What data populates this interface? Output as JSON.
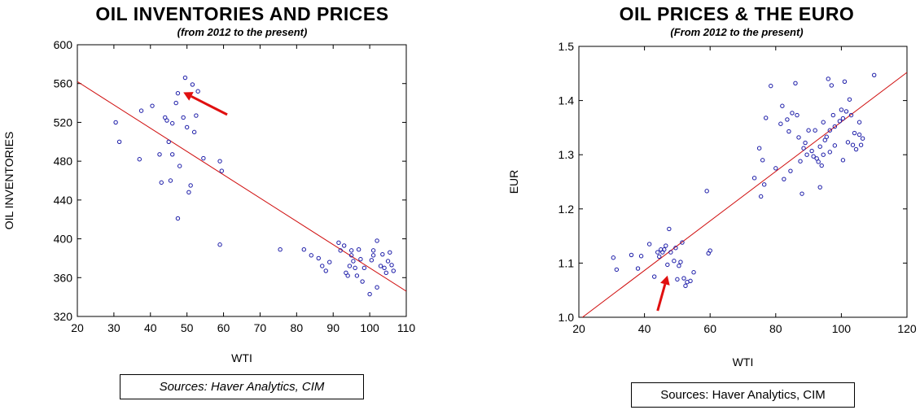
{
  "charts": [
    {
      "title": "OIL INVENTORIES AND PRICES",
      "subtitle": "(from 2012 to the present)",
      "source": "Sources:  Haver Analytics, CIM"
    },
    {
      "title": "OIL PRICES & THE EURO",
      "subtitle": "(From 2012 to the present)",
      "source": "Sources:  Haver Analytics, CIM"
    }
  ],
  "chart_data": [
    {
      "type": "scatter",
      "title": "OIL INVENTORIES AND PRICES",
      "subtitle": "(from 2012 to the present)",
      "xlabel": "WTI",
      "ylabel": "OIL INVENTORIES",
      "xlim": [
        20,
        110
      ],
      "ylim": [
        320,
        600
      ],
      "xticks": [
        "20",
        "30",
        "40",
        "50",
        "60",
        "70",
        "80",
        "90",
        "100",
        "110"
      ],
      "yticks": [
        "320",
        "360",
        "400",
        "440",
        "480",
        "520",
        "560",
        "600"
      ],
      "point_color": "#1c1ca8",
      "line_color": "#d01010",
      "fit_line": [
        [
          20,
          562
        ],
        [
          110,
          346
        ]
      ],
      "arrow": {
        "from": [
          61,
          528
        ],
        "to": [
          49,
          551
        ],
        "color": "#e01010"
      },
      "points": [
        [
          30.5,
          520
        ],
        [
          31.5,
          500
        ],
        [
          37,
          482
        ],
        [
          37.5,
          532
        ],
        [
          40.5,
          537
        ],
        [
          42.5,
          487
        ],
        [
          43,
          458
        ],
        [
          44,
          525
        ],
        [
          44.5,
          522
        ],
        [
          45,
          500
        ],
        [
          45.5,
          460
        ],
        [
          46,
          519
        ],
        [
          46,
          487
        ],
        [
          47,
          540
        ],
        [
          47.5,
          421
        ],
        [
          47.5,
          550
        ],
        [
          48,
          475
        ],
        [
          49,
          525
        ],
        [
          49.5,
          566
        ],
        [
          50,
          515
        ],
        [
          50.5,
          448
        ],
        [
          51,
          455
        ],
        [
          51.5,
          559
        ],
        [
          52,
          510
        ],
        [
          52.5,
          527
        ],
        [
          53,
          552
        ],
        [
          54.5,
          483
        ],
        [
          59,
          480
        ],
        [
          59,
          394
        ],
        [
          59.5,
          470
        ],
        [
          75.5,
          389
        ],
        [
          82,
          389
        ],
        [
          84,
          383
        ],
        [
          86,
          380
        ],
        [
          87,
          372
        ],
        [
          88,
          367
        ],
        [
          89,
          376
        ],
        [
          91.5,
          396
        ],
        [
          92,
          388
        ],
        [
          93,
          393
        ],
        [
          93.5,
          365
        ],
        [
          94,
          362
        ],
        [
          94.5,
          372
        ],
        [
          95,
          388
        ],
        [
          95,
          383
        ],
        [
          95.5,
          377
        ],
        [
          96,
          370
        ],
        [
          96.5,
          362
        ],
        [
          97,
          389
        ],
        [
          97.5,
          379
        ],
        [
          98,
          356
        ],
        [
          98.5,
          370
        ],
        [
          100,
          343
        ],
        [
          100.5,
          378
        ],
        [
          101,
          383
        ],
        [
          101,
          388
        ],
        [
          102,
          350
        ],
        [
          102,
          398
        ],
        [
          103,
          372
        ],
        [
          103.5,
          384
        ],
        [
          104,
          370
        ],
        [
          104.5,
          365
        ],
        [
          105,
          377
        ],
        [
          105.5,
          386
        ],
        [
          106,
          373
        ],
        [
          106.5,
          367
        ]
      ]
    },
    {
      "type": "scatter",
      "title": "OIL PRICES & THE EURO",
      "subtitle": "(From 2012 to the present)",
      "xlabel": "WTI",
      "ylabel": "EUR",
      "xlim": [
        20,
        120
      ],
      "ylim": [
        1.0,
        1.5
      ],
      "xticks": [
        "20",
        "40",
        "60",
        "80",
        "100",
        "120"
      ],
      "yticks": [
        "1.0",
        "1.1",
        "1.2",
        "1.3",
        "1.4",
        "1.5"
      ],
      "point_color": "#1c1ca8",
      "line_color": "#d01010",
      "fit_line": [
        [
          20,
          0.995
        ],
        [
          120,
          1.452
        ]
      ],
      "arrow": {
        "from": [
          44,
          1.012
        ],
        "to": [
          47,
          1.077
        ],
        "color": "#e01010"
      },
      "points": [
        [
          30.5,
          1.11
        ],
        [
          31.5,
          1.088
        ],
        [
          36,
          1.115
        ],
        [
          38,
          1.09
        ],
        [
          39,
          1.113
        ],
        [
          41.5,
          1.135
        ],
        [
          43,
          1.075
        ],
        [
          44,
          1.12
        ],
        [
          44.5,
          1.112
        ],
        [
          45,
          1.125
        ],
        [
          45.5,
          1.12
        ],
        [
          46,
          1.125
        ],
        [
          46.5,
          1.132
        ],
        [
          47,
          1.097
        ],
        [
          47.5,
          1.163
        ],
        [
          48,
          1.12
        ],
        [
          49,
          1.104
        ],
        [
          49.5,
          1.128
        ],
        [
          50,
          1.07
        ],
        [
          50.5,
          1.095
        ],
        [
          51,
          1.102
        ],
        [
          51.5,
          1.138
        ],
        [
          52,
          1.072
        ],
        [
          52.5,
          1.058
        ],
        [
          53,
          1.065
        ],
        [
          54,
          1.067
        ],
        [
          55,
          1.083
        ],
        [
          59,
          1.233
        ],
        [
          59.5,
          1.118
        ],
        [
          60,
          1.123
        ],
        [
          73.5,
          1.257
        ],
        [
          75,
          1.312
        ],
        [
          75.5,
          1.223
        ],
        [
          76,
          1.29
        ],
        [
          76.5,
          1.245
        ],
        [
          77,
          1.368
        ],
        [
          78.5,
          1.427
        ],
        [
          80,
          1.275
        ],
        [
          81.5,
          1.357
        ],
        [
          82,
          1.39
        ],
        [
          82.5,
          1.255
        ],
        [
          83.5,
          1.365
        ],
        [
          84,
          1.343
        ],
        [
          84.5,
          1.27
        ],
        [
          85,
          1.377
        ],
        [
          86,
          1.432
        ],
        [
          86.5,
          1.373
        ],
        [
          87,
          1.332
        ],
        [
          87.5,
          1.288
        ],
        [
          88,
          1.228
        ],
        [
          88.5,
          1.312
        ],
        [
          89,
          1.322
        ],
        [
          89.5,
          1.3
        ],
        [
          90,
          1.345
        ],
        [
          91,
          1.307
        ],
        [
          91.5,
          1.297
        ],
        [
          92,
          1.345
        ],
        [
          92.5,
          1.293
        ],
        [
          93,
          1.287
        ],
        [
          93.5,
          1.315
        ],
        [
          93.5,
          1.24
        ],
        [
          94,
          1.28
        ],
        [
          94.5,
          1.36
        ],
        [
          94.5,
          1.3
        ],
        [
          95,
          1.327
        ],
        [
          95.5,
          1.333
        ],
        [
          96,
          1.44
        ],
        [
          96.5,
          1.305
        ],
        [
          96.5,
          1.345
        ],
        [
          97,
          1.428
        ],
        [
          97.5,
          1.373
        ],
        [
          98,
          1.352
        ],
        [
          98,
          1.317
        ],
        [
          99.5,
          1.362
        ],
        [
          100,
          1.383
        ],
        [
          100.5,
          1.29
        ],
        [
          100.5,
          1.367
        ],
        [
          101,
          1.435
        ],
        [
          101.5,
          1.38
        ],
        [
          102,
          1.323
        ],
        [
          102.5,
          1.402
        ],
        [
          103,
          1.373
        ],
        [
          103.5,
          1.318
        ],
        [
          104,
          1.34
        ],
        [
          104.5,
          1.31
        ],
        [
          105.5,
          1.337
        ],
        [
          105.5,
          1.36
        ],
        [
          106,
          1.318
        ],
        [
          106.5,
          1.33
        ],
        [
          110,
          1.447
        ]
      ]
    }
  ]
}
